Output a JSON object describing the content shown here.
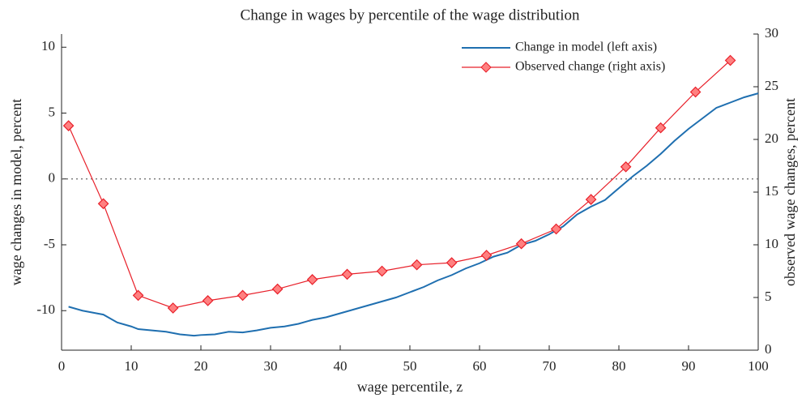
{
  "chart_data": {
    "type": "line",
    "title": "Change in wages by percentile of the wage distribution",
    "x_label": "wage percentile, z",
    "y_label": "wage changes in model, percent",
    "y2_label": "observed wage changes, percent",
    "xlim": [
      0,
      100
    ],
    "xticks": [
      0,
      10,
      20,
      30,
      40,
      50,
      60,
      70,
      80,
      90,
      100
    ],
    "ylim": [
      -13,
      11
    ],
    "yticks": [
      -10,
      -5,
      0,
      5,
      10
    ],
    "y2lim": [
      0,
      30
    ],
    "y2ticks": [
      0,
      5,
      10,
      15,
      20,
      25,
      30
    ],
    "reference_line": 0,
    "legend": "top-right",
    "series": [
      {
        "name": "Change in model (left axis)",
        "color": "#1f6fb0",
        "marker": false,
        "x": [
          1,
          3,
          5,
          6,
          8,
          10,
          11,
          13,
          15,
          17,
          19,
          20,
          22,
          24,
          26,
          28,
          30,
          32,
          34,
          36,
          38,
          40,
          42,
          44,
          46,
          48,
          50,
          52,
          54,
          56,
          58,
          60,
          62,
          64,
          66,
          68,
          70,
          72,
          74,
          76,
          78,
          80,
          82,
          84,
          86,
          88,
          90,
          92,
          94,
          96,
          98,
          100
        ],
        "values": [
          -9.7,
          -10.0,
          -10.2,
          -10.3,
          -10.9,
          -11.2,
          -11.4,
          -11.5,
          -11.6,
          -11.8,
          -11.9,
          -11.85,
          -11.8,
          -11.6,
          -11.65,
          -11.5,
          -11.3,
          -11.2,
          -11.0,
          -10.7,
          -10.5,
          -10.2,
          -9.9,
          -9.6,
          -9.3,
          -9.0,
          -8.6,
          -8.2,
          -7.7,
          -7.3,
          -6.8,
          -6.4,
          -5.9,
          -5.6,
          -5.0,
          -4.7,
          -4.2,
          -3.6,
          -2.7,
          -2.1,
          -1.6,
          -0.7,
          0.2,
          1.0,
          1.9,
          2.9,
          3.8,
          4.6,
          5.4,
          5.8,
          6.2,
          6.5
        ]
      },
      {
        "name": "Observed change (right axis)",
        "color": "#e8202a",
        "marker": true,
        "axis": "y2",
        "x": [
          1,
          6,
          11,
          16,
          21,
          26,
          31,
          36,
          41,
          46,
          51,
          56,
          61,
          66,
          71,
          76,
          81,
          86,
          91,
          96
        ],
        "values": [
          21.3,
          13.9,
          5.2,
          4.0,
          4.7,
          5.2,
          5.8,
          6.7,
          7.2,
          7.5,
          8.1,
          8.3,
          9.0,
          10.1,
          11.5,
          14.3,
          17.4,
          21.1,
          24.5,
          27.5
        ]
      }
    ]
  }
}
